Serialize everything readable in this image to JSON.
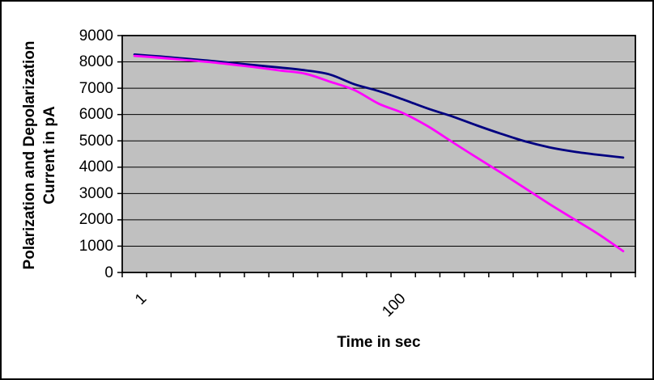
{
  "chart_data": {
    "type": "line",
    "title": "",
    "xlabel": "Time in sec",
    "ylabel": "Polarization and Depolarization Current in pA",
    "ylabel_lines": [
      "Polarization and Depolarization",
      "Current in pA"
    ],
    "x_scale": "logarithmic category axis (5 points per decade)",
    "x": [
      1,
      1.6,
      2.5,
      4,
      6.3,
      10,
      16,
      25,
      40,
      63,
      100,
      160,
      250,
      400,
      630,
      1000,
      1600,
      2500,
      4000,
      6300,
      10000
    ],
    "series": [
      {
        "name": "polarization-current",
        "color": "#000080",
        "values": [
          8280,
          8210,
          8130,
          8050,
          7960,
          7870,
          7780,
          7680,
          7520,
          7150,
          6890,
          6570,
          6230,
          5930,
          5590,
          5270,
          4980,
          4750,
          4590,
          4470,
          4365
        ]
      },
      {
        "name": "depolarization-current",
        "color": "#FF00FF",
        "values": [
          8230,
          8160,
          8080,
          8000,
          7900,
          7790,
          7670,
          7550,
          7250,
          6930,
          6410,
          6050,
          5560,
          4960,
          4370,
          3790,
          3190,
          2590,
          2020,
          1450,
          810
        ]
      }
    ],
    "ylim": [
      0,
      9000
    ],
    "ytick_step": 1000,
    "y_ticklabels": [
      "9000",
      "8000",
      "7000",
      "6000",
      "5000",
      "4000",
      "3000",
      "2000",
      "1000",
      "0"
    ],
    "x_visible_ticklabels": [
      {
        "label": "1",
        "category_index": 0
      },
      {
        "label": "100",
        "category_index": 10
      }
    ],
    "grid": "horizontal gridlines on",
    "legend": "none",
    "plot_background": "#C0C0C0"
  },
  "colors": {
    "plot_fill": "#C0C0C0",
    "axis_and_grid": "#000000",
    "series1_line": "#000080",
    "series2_line": "#FF00FF",
    "page_background": "#FFFFFF"
  }
}
